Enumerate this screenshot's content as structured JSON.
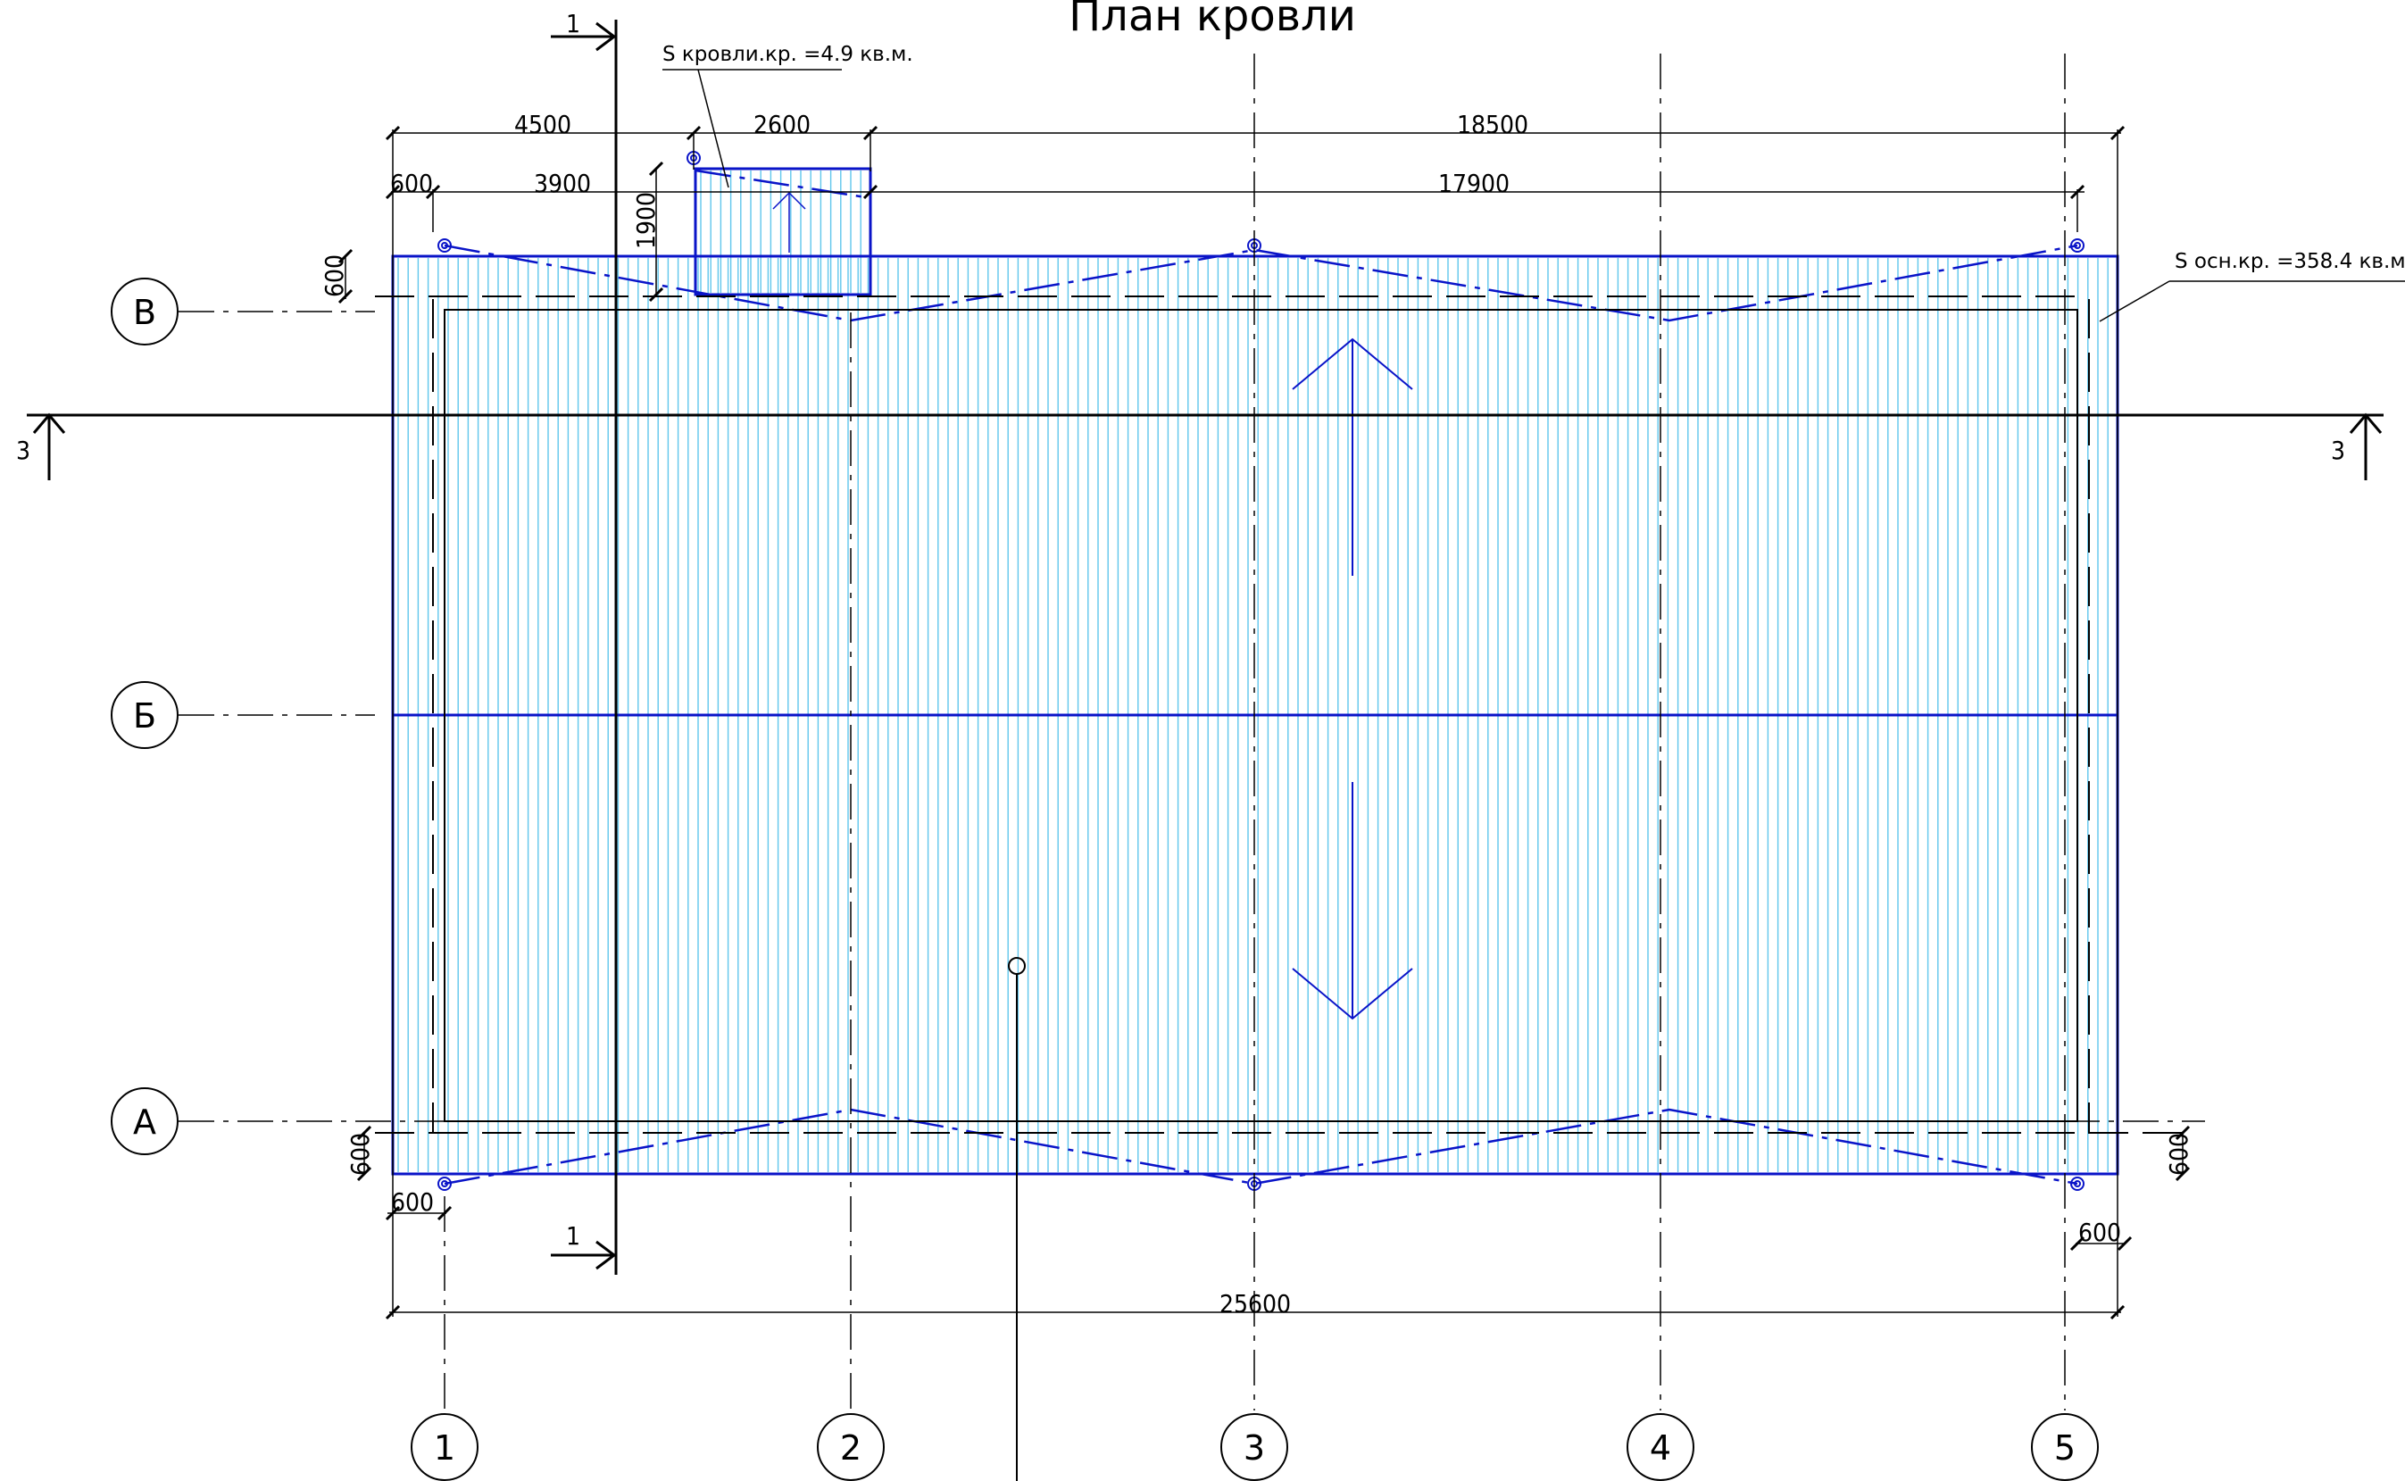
{
  "title": "План кровли",
  "colors": {
    "roof_outline": "#0a14c8",
    "roof_hatch": "#5fc6ec",
    "grid_line": "#000000",
    "background": "#ffffff"
  },
  "axes": {
    "vertical": [
      "1",
      "2",
      "3",
      "4",
      "5"
    ],
    "horizontal": [
      "В",
      "Б",
      "А"
    ]
  },
  "sections": {
    "section_1": "1",
    "section_3": "3"
  },
  "notes": {
    "small_roof_area": "S кровли.кр. =4.9 кв.м.",
    "main_roof_area": "S осн.кр. =358.4 кв.м."
  },
  "dimensions": {
    "top_left_total": "4500",
    "top_small_roof_width": "2600",
    "top_right_total": "18500",
    "overhang_left_top": "600",
    "inner_left": "3900",
    "inner_right": "17900",
    "small_roof_depth": "1900",
    "overhang_top_side": "600",
    "overhang_bottom_side_left": "600",
    "overhang_bottom_left": "600",
    "overhang_bottom_side_right": "600",
    "overhang_bottom_right": "600",
    "overall_width": "25600"
  }
}
